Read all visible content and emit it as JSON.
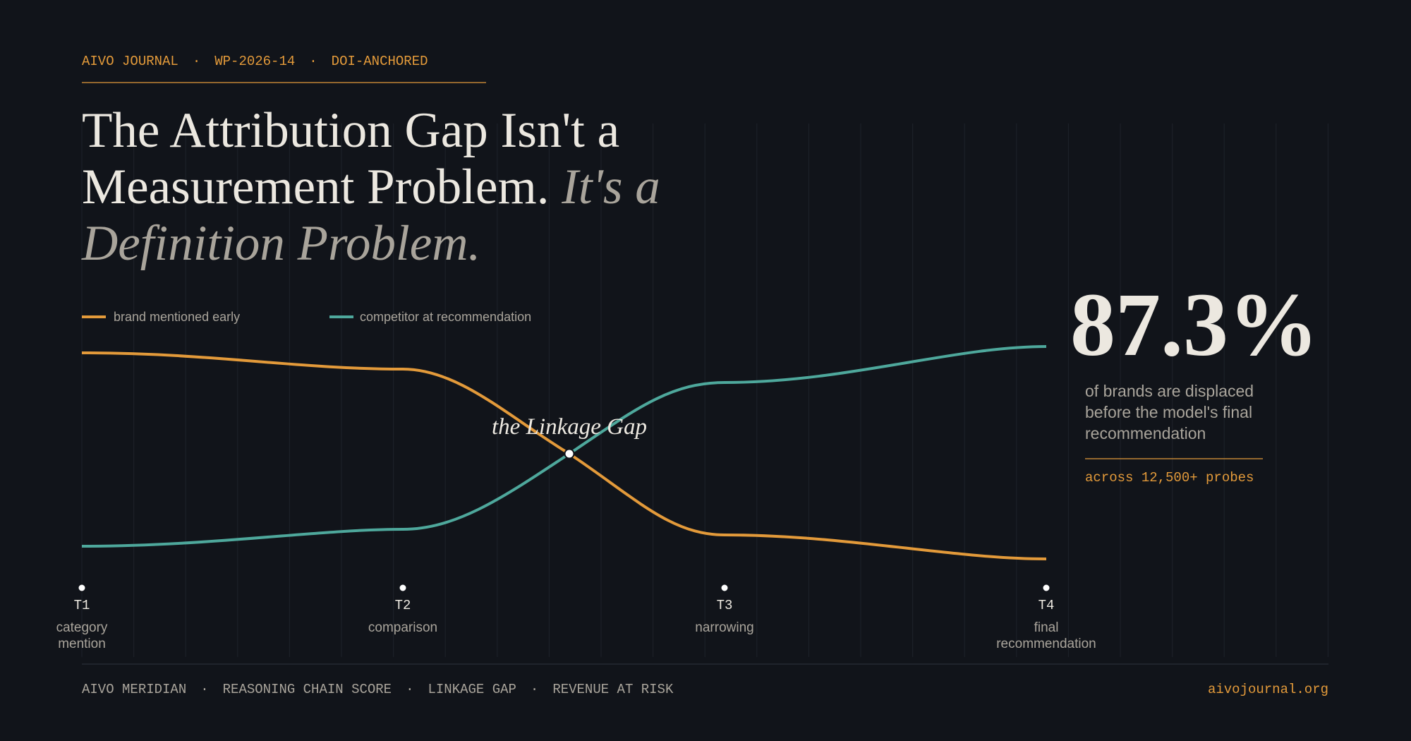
{
  "header": {
    "items": [
      "AIVO JOURNAL",
      "WP-2026-14",
      "DOI-ANCHORED"
    ],
    "separator": "·"
  },
  "title": {
    "main": "The Attribution Gap Isn't a Measurement Problem.",
    "emphasis": "It's a Definition Problem."
  },
  "legend": [
    "brand mentioned early",
    "competitor at recommendation"
  ],
  "annotation": "the Linkage Gap",
  "stages": [
    {
      "code": "T1",
      "label": [
        "category",
        "mention"
      ]
    },
    {
      "code": "T2",
      "label": [
        "comparison"
      ]
    },
    {
      "code": "T3",
      "label": [
        "narrowing"
      ]
    },
    {
      "code": "T4",
      "label": [
        "final",
        "recommendation"
      ]
    }
  ],
  "stat": {
    "value": "87.3%",
    "description": [
      "of brands are displaced",
      "before the model's final",
      "recommendation"
    ],
    "note": "across 12,500+ probes"
  },
  "footer": {
    "items": [
      "AIVO MERIDIAN",
      "REASONING CHAIN SCORE",
      "LINKAGE GAP",
      "REVENUE AT RISK"
    ],
    "separator": "·",
    "site": "aivojournal.org"
  }
}
